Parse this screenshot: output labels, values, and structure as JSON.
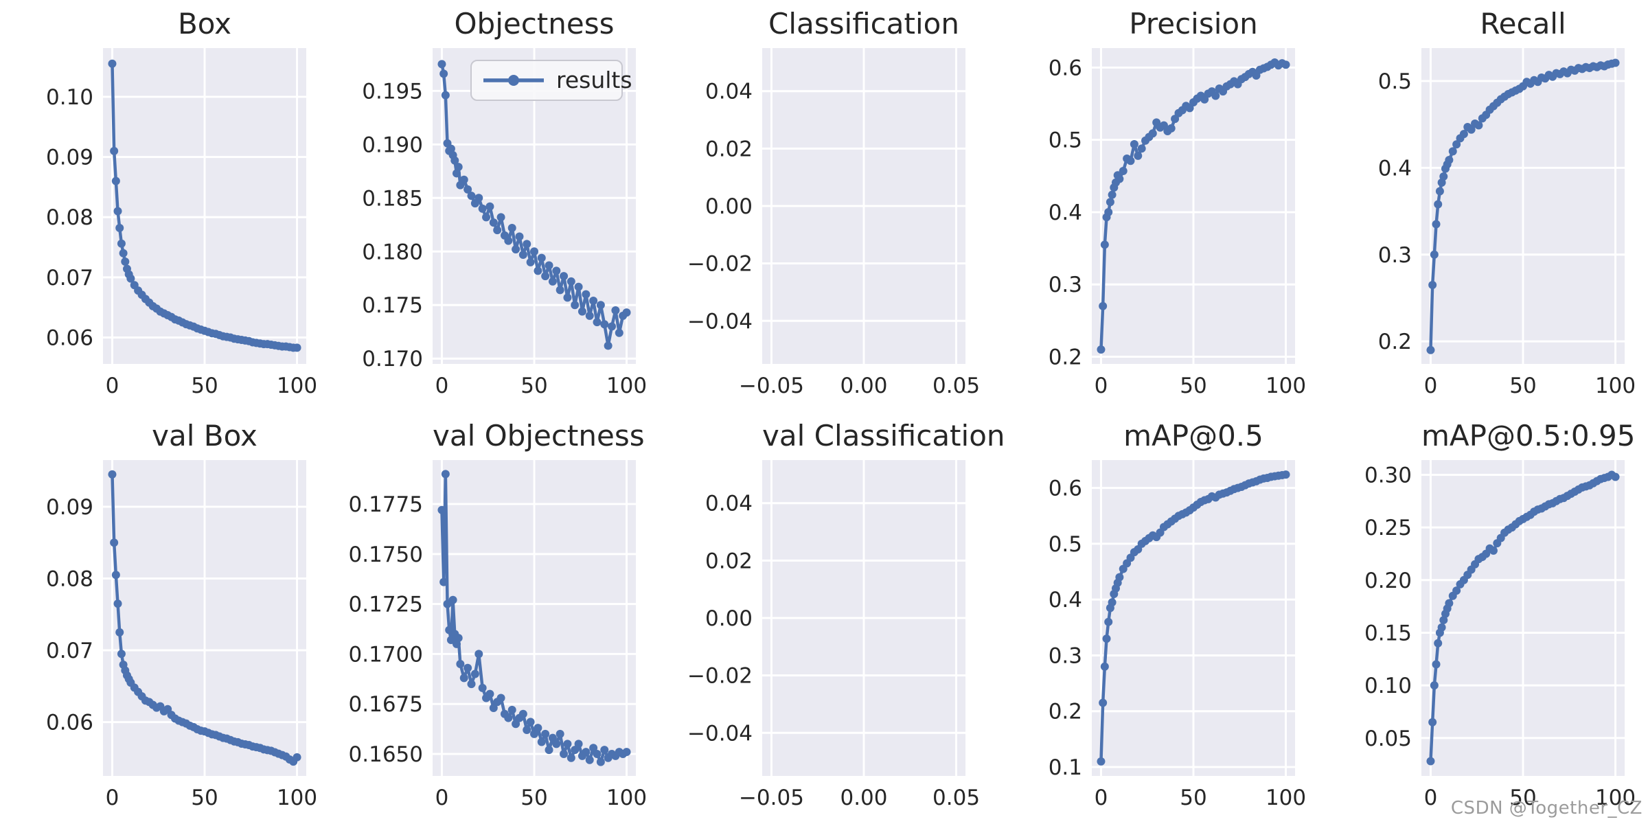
{
  "watermark": "CSDN @Together_CZ",
  "legend": {
    "label": "results"
  },
  "colors": {
    "line": "#4c72b0",
    "axes_bg": "#eaeaf2",
    "grid": "#ffffff",
    "text": "#262626",
    "watermark": "#9b9b9b",
    "legend_bg": "#f7f7fa",
    "legend_border": "#c8c8d0",
    "figure_bg": "#ffffff"
  },
  "shared": {
    "epochs": [
      0,
      1,
      2,
      3,
      4,
      5,
      6,
      7,
      8,
      9,
      10,
      12,
      14,
      16,
      18,
      20,
      22,
      24,
      26,
      28,
      30,
      32,
      34,
      36,
      38,
      40,
      42,
      44,
      46,
      48,
      50,
      52,
      54,
      56,
      58,
      60,
      62,
      64,
      66,
      68,
      70,
      72,
      74,
      76,
      78,
      80,
      82,
      84,
      86,
      88,
      90,
      92,
      94,
      96,
      98,
      100
    ]
  },
  "chart_data": [
    {
      "type": "line",
      "title": "Box",
      "series_name": "results",
      "xlim": [
        -5,
        105
      ],
      "ylim": [
        0.0556,
        0.1081
      ],
      "xtick_vals": [
        0,
        50,
        100
      ],
      "xtick_labels": [
        "0",
        "50",
        "100"
      ],
      "ytick_vals": [
        0.1,
        0.09,
        0.08,
        0.07,
        0.06
      ],
      "ytick_labels": [
        "0.10",
        "0.09",
        "0.08",
        "0.07",
        "0.06"
      ],
      "y": [
        0.1055,
        0.091,
        0.086,
        0.081,
        0.0782,
        0.0756,
        0.074,
        0.0726,
        0.0714,
        0.0705,
        0.0698,
        0.0687,
        0.0678,
        0.0671,
        0.0664,
        0.0658,
        0.0652,
        0.0648,
        0.0643,
        0.064,
        0.0637,
        0.0634,
        0.063,
        0.0628,
        0.0625,
        0.0622,
        0.062,
        0.0618,
        0.0615,
        0.0613,
        0.0611,
        0.0609,
        0.0607,
        0.0606,
        0.0604,
        0.0602,
        0.0601,
        0.06,
        0.0598,
        0.0597,
        0.0596,
        0.0595,
        0.0594,
        0.0592,
        0.0591,
        0.059,
        0.0589,
        0.0589,
        0.0588,
        0.0587,
        0.0586,
        0.0585,
        0.0585,
        0.0584,
        0.0583,
        0.0583
      ]
    },
    {
      "type": "line",
      "title": "Objectness",
      "series_name": "results",
      "legend": "results",
      "xlim": [
        -5,
        105
      ],
      "ylim": [
        0.1695,
        0.199
      ],
      "xtick_vals": [
        0,
        50,
        100
      ],
      "xtick_labels": [
        "0",
        "50",
        "100"
      ],
      "ytick_vals": [
        0.195,
        0.19,
        0.185,
        0.18,
        0.175,
        0.17
      ],
      "ytick_labels": [
        "0.195",
        "0.190",
        "0.185",
        "0.180",
        "0.175",
        "0.170"
      ],
      "y": [
        0.1975,
        0.1966,
        0.1946,
        0.1901,
        0.1894,
        0.1896,
        0.189,
        0.1885,
        0.1873,
        0.1879,
        0.1862,
        0.1867,
        0.1858,
        0.1852,
        0.1845,
        0.185,
        0.184,
        0.1832,
        0.1842,
        0.1827,
        0.182,
        0.1832,
        0.1815,
        0.181,
        0.1822,
        0.1802,
        0.1814,
        0.1797,
        0.1807,
        0.179,
        0.18,
        0.1782,
        0.1794,
        0.1777,
        0.1787,
        0.1772,
        0.1782,
        0.1764,
        0.1777,
        0.1757,
        0.1772,
        0.175,
        0.1767,
        0.1744,
        0.176,
        0.174,
        0.1754,
        0.1734,
        0.175,
        0.1732,
        0.1712,
        0.173,
        0.1745,
        0.1724,
        0.174,
        0.1743
      ]
    },
    {
      "type": "empty",
      "title": "Classification",
      "xlim": [
        -0.055,
        0.055
      ],
      "ylim": [
        -0.055,
        0.055
      ],
      "xtick_vals": [
        -0.05,
        0.0,
        0.05
      ],
      "xtick_labels": [
        "−0.05",
        "0.00",
        "0.05"
      ],
      "ytick_vals": [
        0.04,
        0.02,
        0.0,
        -0.02,
        -0.04
      ],
      "ytick_labels": [
        "0.04",
        "0.02",
        "0.00",
        "−0.02",
        "−0.04"
      ]
    },
    {
      "type": "line",
      "title": "Precision",
      "series_name": "results",
      "xlim": [
        -5,
        105
      ],
      "ylim": [
        0.19,
        0.627
      ],
      "xtick_vals": [
        0,
        50,
        100
      ],
      "xtick_labels": [
        "0",
        "50",
        "100"
      ],
      "ytick_vals": [
        0.6,
        0.5,
        0.4,
        0.3,
        0.2
      ],
      "ytick_labels": [
        "0.6",
        "0.5",
        "0.4",
        "0.3",
        "0.2"
      ],
      "y": [
        0.21,
        0.27,
        0.355,
        0.393,
        0.4,
        0.414,
        0.424,
        0.434,
        0.441,
        0.451,
        0.446,
        0.457,
        0.474,
        0.471,
        0.494,
        0.478,
        0.488,
        0.499,
        0.504,
        0.509,
        0.524,
        0.517,
        0.52,
        0.512,
        0.516,
        0.529,
        0.537,
        0.541,
        0.547,
        0.544,
        0.552,
        0.557,
        0.561,
        0.556,
        0.564,
        0.567,
        0.561,
        0.571,
        0.567,
        0.574,
        0.577,
        0.581,
        0.577,
        0.584,
        0.587,
        0.591,
        0.594,
        0.589,
        0.597,
        0.599,
        0.601,
        0.604,
        0.607,
        0.603,
        0.606,
        0.604
      ]
    },
    {
      "type": "line",
      "title": "Recall",
      "series_name": "results",
      "xlim": [
        -5,
        105
      ],
      "ylim": [
        0.174,
        0.538
      ],
      "xtick_vals": [
        0,
        50,
        100
      ],
      "xtick_labels": [
        "0",
        "50",
        "100"
      ],
      "ytick_vals": [
        0.5,
        0.4,
        0.3,
        0.2
      ],
      "ytick_labels": [
        "0.5",
        "0.4",
        "0.3",
        "0.2"
      ],
      "y": [
        0.19,
        0.265,
        0.3,
        0.335,
        0.358,
        0.373,
        0.383,
        0.39,
        0.399,
        0.404,
        0.409,
        0.419,
        0.427,
        0.434,
        0.439,
        0.447,
        0.444,
        0.451,
        0.449,
        0.457,
        0.461,
        0.467,
        0.471,
        0.475,
        0.479,
        0.482,
        0.485,
        0.487,
        0.489,
        0.491,
        0.494,
        0.499,
        0.497,
        0.501,
        0.499,
        0.504,
        0.503,
        0.507,
        0.505,
        0.509,
        0.508,
        0.511,
        0.509,
        0.513,
        0.512,
        0.515,
        0.514,
        0.516,
        0.515,
        0.517,
        0.516,
        0.518,
        0.517,
        0.519,
        0.52,
        0.521
      ]
    },
    {
      "type": "line",
      "title": "val Box",
      "series_name": "results",
      "xlim": [
        -5,
        105
      ],
      "ylim": [
        0.0525,
        0.0965
      ],
      "xtick_vals": [
        0,
        50,
        100
      ],
      "xtick_labels": [
        "0",
        "50",
        "100"
      ],
      "ytick_vals": [
        0.09,
        0.08,
        0.07,
        0.06
      ],
      "ytick_labels": [
        "0.09",
        "0.08",
        "0.07",
        "0.06"
      ],
      "y": [
        0.0945,
        0.085,
        0.0805,
        0.0765,
        0.0725,
        0.0695,
        0.068,
        0.0672,
        0.0665,
        0.066,
        0.0655,
        0.0648,
        0.0642,
        0.0636,
        0.063,
        0.0628,
        0.0624,
        0.062,
        0.0622,
        0.0615,
        0.0618,
        0.061,
        0.0605,
        0.0602,
        0.06,
        0.0598,
        0.0595,
        0.0593,
        0.059,
        0.0588,
        0.0587,
        0.0585,
        0.0583,
        0.0582,
        0.058,
        0.0578,
        0.0577,
        0.0575,
        0.0573,
        0.0572,
        0.057,
        0.0569,
        0.0568,
        0.0566,
        0.0565,
        0.0564,
        0.0562,
        0.0561,
        0.056,
        0.0558,
        0.0556,
        0.0554,
        0.0552,
        0.0548,
        0.0545,
        0.0551
      ]
    },
    {
      "type": "line",
      "title": "val Objectness",
      "series_name": "results",
      "xlim": [
        -5,
        105
      ],
      "ylim": [
        0.1639,
        0.1797
      ],
      "xtick_vals": [
        0,
        50,
        100
      ],
      "xtick_labels": [
        "0",
        "50",
        "100"
      ],
      "ytick_vals": [
        0.1775,
        0.175,
        0.1725,
        0.17,
        0.1675,
        0.165
      ],
      "ytick_labels": [
        "0.1775",
        "0.1750",
        "0.1725",
        "0.1700",
        "0.1675",
        "0.1650"
      ],
      "y": [
        0.1772,
        0.1736,
        0.179,
        0.1725,
        0.1712,
        0.1707,
        0.1727,
        0.171,
        0.1705,
        0.1708,
        0.1695,
        0.1688,
        0.1693,
        0.1685,
        0.169,
        0.17,
        0.1683,
        0.1678,
        0.168,
        0.1673,
        0.1676,
        0.1678,
        0.167,
        0.1668,
        0.1672,
        0.1665,
        0.1668,
        0.167,
        0.1662,
        0.1666,
        0.166,
        0.1663,
        0.1656,
        0.166,
        0.1652,
        0.1658,
        0.1655,
        0.166,
        0.165,
        0.1655,
        0.1648,
        0.1652,
        0.1655,
        0.1649,
        0.1651,
        0.1647,
        0.1653,
        0.165,
        0.1646,
        0.1652,
        0.1648,
        0.165,
        0.1649,
        0.1651,
        0.165,
        0.1651
      ]
    },
    {
      "type": "empty",
      "title": "val Classification",
      "xlim": [
        -0.055,
        0.055
      ],
      "ylim": [
        -0.055,
        0.055
      ],
      "xtick_vals": [
        -0.05,
        0.0,
        0.05
      ],
      "xtick_labels": [
        "−0.05",
        "0.00",
        "0.05"
      ],
      "ytick_vals": [
        0.04,
        0.02,
        0.0,
        -0.02,
        -0.04
      ],
      "ytick_labels": [
        "0.04",
        "0.02",
        "0.00",
        "−0.02",
        "−0.04"
      ]
    },
    {
      "type": "line",
      "title": "mAP@0.5",
      "series_name": "results",
      "xlim": [
        -5,
        105
      ],
      "ylim": [
        0.084,
        0.65
      ],
      "xtick_vals": [
        0,
        50,
        100
      ],
      "xtick_labels": [
        "0",
        "50",
        "100"
      ],
      "ytick_vals": [
        0.6,
        0.5,
        0.4,
        0.3,
        0.2,
        0.1
      ],
      "ytick_labels": [
        "0.6",
        "0.5",
        "0.4",
        "0.3",
        "0.2",
        "0.1"
      ],
      "y": [
        0.11,
        0.215,
        0.28,
        0.33,
        0.36,
        0.385,
        0.395,
        0.41,
        0.42,
        0.43,
        0.44,
        0.455,
        0.465,
        0.475,
        0.485,
        0.49,
        0.5,
        0.505,
        0.51,
        0.515,
        0.512,
        0.52,
        0.53,
        0.535,
        0.54,
        0.545,
        0.55,
        0.553,
        0.556,
        0.56,
        0.565,
        0.57,
        0.575,
        0.578,
        0.58,
        0.585,
        0.583,
        0.588,
        0.59,
        0.592,
        0.595,
        0.598,
        0.6,
        0.602,
        0.605,
        0.608,
        0.61,
        0.612,
        0.615,
        0.617,
        0.618,
        0.62,
        0.621,
        0.622,
        0.623,
        0.624
      ]
    },
    {
      "type": "line",
      "title": "mAP@0.5:0.95",
      "series_name": "results",
      "xlim": [
        -5,
        105
      ],
      "ylim": [
        0.014,
        0.314
      ],
      "xtick_vals": [
        0,
        50,
        100
      ],
      "xtick_labels": [
        "0",
        "50",
        "100"
      ],
      "ytick_vals": [
        0.3,
        0.25,
        0.2,
        0.15,
        0.1,
        0.05
      ],
      "ytick_labels": [
        "0.30",
        "0.25",
        "0.20",
        "0.15",
        "0.10",
        "0.05"
      ],
      "y": [
        0.028,
        0.065,
        0.1,
        0.12,
        0.14,
        0.15,
        0.155,
        0.162,
        0.168,
        0.173,
        0.178,
        0.185,
        0.19,
        0.196,
        0.2,
        0.205,
        0.21,
        0.215,
        0.22,
        0.222,
        0.225,
        0.23,
        0.228,
        0.235,
        0.24,
        0.245,
        0.248,
        0.25,
        0.253,
        0.256,
        0.258,
        0.26,
        0.262,
        0.265,
        0.267,
        0.268,
        0.27,
        0.272,
        0.273,
        0.275,
        0.277,
        0.278,
        0.28,
        0.282,
        0.284,
        0.286,
        0.288,
        0.289,
        0.29,
        0.292,
        0.294,
        0.296,
        0.297,
        0.298,
        0.3,
        0.298
      ]
    }
  ]
}
